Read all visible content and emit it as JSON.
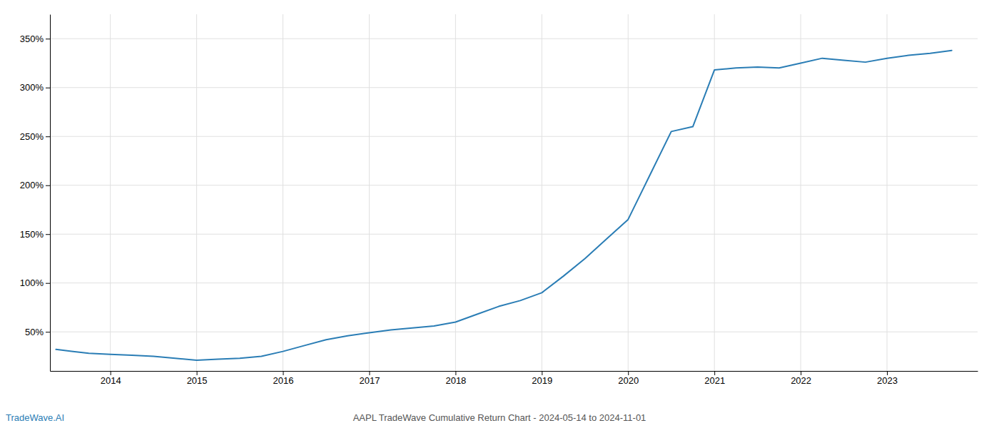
{
  "chart_data": {
    "type": "line",
    "title": "AAPL TradeWave Cumulative Return Chart - 2024-05-14 to 2024-11-01",
    "annotations": [
      "TradeWave.AI"
    ],
    "x": [
      2013.37,
      2013.55,
      2013.75,
      2014.0,
      2014.25,
      2014.5,
      2014.75,
      2015.0,
      2015.25,
      2015.5,
      2015.75,
      2016.0,
      2016.25,
      2016.5,
      2016.75,
      2017.0,
      2017.25,
      2017.5,
      2017.75,
      2018.0,
      2018.25,
      2018.5,
      2018.75,
      2019.0,
      2019.25,
      2019.5,
      2019.75,
      2020.0,
      2020.25,
      2020.5,
      2020.75,
      2021.0,
      2021.25,
      2021.5,
      2021.75,
      2022.0,
      2022.25,
      2022.5,
      2022.75,
      2023.0,
      2023.25,
      2023.5,
      2023.75
    ],
    "values": [
      32,
      30,
      28,
      27,
      26,
      25,
      23,
      21,
      22,
      23,
      25,
      30,
      36,
      42,
      46,
      49,
      52,
      54,
      56,
      60,
      68,
      76,
      82,
      90,
      107,
      125,
      145,
      165,
      210,
      255,
      260,
      318,
      320,
      321,
      320,
      325,
      330,
      328,
      326,
      330,
      333,
      335,
      338
    ],
    "color": "#2a7db5",
    "xlim": [
      2013.3,
      2024.05
    ],
    "xticks": [
      2014,
      2015,
      2016,
      2017,
      2018,
      2019,
      2020,
      2021,
      2022,
      2023
    ],
    "ylim": [
      10,
      375
    ],
    "yticks": [
      {
        "value": 50,
        "label": "50%"
      },
      {
        "value": 100,
        "label": "100%"
      },
      {
        "value": 150,
        "label": "150%"
      },
      {
        "value": 200,
        "label": "200%"
      },
      {
        "value": 250,
        "label": "250%"
      },
      {
        "value": 300,
        "label": "300%"
      },
      {
        "value": 350,
        "label": "350%"
      }
    ],
    "grid": true
  }
}
